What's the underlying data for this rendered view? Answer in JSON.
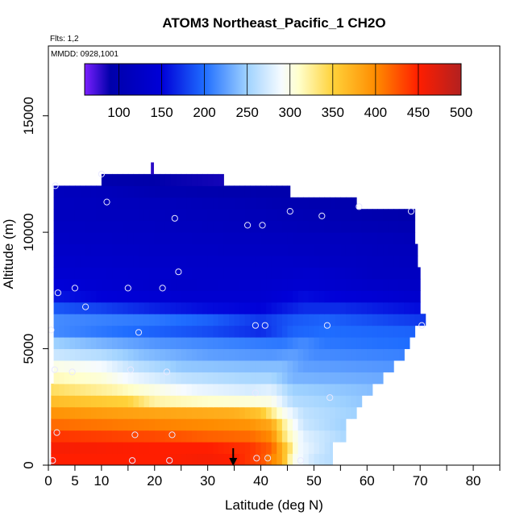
{
  "chart_data": {
    "type": "heatmap",
    "title": "ATOM3 Northeast_Pacific_1 CH2O",
    "subtitle_flights": "Flts: 1,2",
    "subtitle_dates": "MMDD: 0928,1001",
    "xlabel": "Latitude (deg N)",
    "ylabel": "Altitude (m)",
    "xlim": [
      0,
      85
    ],
    "ylim": [
      0,
      18000
    ],
    "x_ticks": [
      0,
      5,
      10,
      20,
      30,
      40,
      50,
      60,
      70,
      80
    ],
    "x_tick_labels": [
      "0",
      "5",
      "10",
      "20",
      "30",
      "40",
      "50",
      "60",
      "70",
      "80"
    ],
    "y_ticks": [
      0,
      5000,
      10000,
      15000
    ],
    "y_tick_labels": [
      "0",
      "5000",
      "10000",
      "15000"
    ],
    "colorbar": {
      "range": [
        60,
        500
      ],
      "ticks": [
        100,
        150,
        200,
        250,
        300,
        350,
        400,
        450,
        500
      ],
      "tick_labels": [
        "100",
        "150",
        "200",
        "250",
        "300",
        "350",
        "400",
        "450",
        "500"
      ],
      "stops": [
        [
          60,
          "#7b1fff"
        ],
        [
          90,
          "#0000aa"
        ],
        [
          150,
          "#0000d8"
        ],
        [
          200,
          "#1f6dff"
        ],
        [
          250,
          "#9fd2ff"
        ],
        [
          290,
          "#f6fbff"
        ],
        [
          310,
          "#ffffcc"
        ],
        [
          350,
          "#ffd23a"
        ],
        [
          400,
          "#ff8c00"
        ],
        [
          450,
          "#ff1e00"
        ],
        [
          500,
          "#b22020"
        ]
      ]
    },
    "altitude_bins": [
      {
        "z0": 0,
        "z1": 500,
        "xmin": 0.5,
        "xmax": 53.5,
        "v": [
          [
            0.5,
            450
          ],
          [
            20,
            450
          ],
          [
            30,
            455
          ],
          [
            35,
            450
          ],
          [
            40,
            430
          ],
          [
            44,
            380
          ],
          [
            46,
            300
          ],
          [
            50,
            270
          ],
          [
            53.5,
            260
          ]
        ]
      },
      {
        "z0": 500,
        "z1": 1000,
        "xmin": 0.5,
        "xmax": 53.5,
        "v": [
          [
            0.5,
            455
          ],
          [
            20,
            450
          ],
          [
            30,
            450
          ],
          [
            38,
            440
          ],
          [
            42,
            420
          ],
          [
            45,
            350
          ],
          [
            47,
            290
          ],
          [
            53.5,
            260
          ]
        ]
      },
      {
        "z0": 1000,
        "z1": 1500,
        "xmin": 0.5,
        "xmax": 56,
        "v": [
          [
            0.5,
            440
          ],
          [
            20,
            430
          ],
          [
            30,
            420
          ],
          [
            38,
            415
          ],
          [
            42,
            400
          ],
          [
            45,
            320
          ],
          [
            48,
            280
          ],
          [
            56,
            255
          ]
        ]
      },
      {
        "z0": 1500,
        "z1": 2000,
        "xmin": 0.5,
        "xmax": 56,
        "v": [
          [
            0.5,
            415
          ],
          [
            20,
            405
          ],
          [
            30,
            400
          ],
          [
            38,
            395
          ],
          [
            42,
            380
          ],
          [
            45,
            310
          ],
          [
            48,
            270
          ],
          [
            56,
            250
          ]
        ]
      },
      {
        "z0": 2000,
        "z1": 2500,
        "xmin": 0.5,
        "xmax": 58,
        "v": [
          [
            0.5,
            395
          ],
          [
            15,
            385
          ],
          [
            25,
            380
          ],
          [
            35,
            375
          ],
          [
            40,
            360
          ],
          [
            44,
            300
          ],
          [
            48,
            265
          ],
          [
            58,
            250
          ]
        ]
      },
      {
        "z0": 2500,
        "z1": 3000,
        "xmin": 0.5,
        "xmax": 59,
        "v": [
          [
            0.5,
            365
          ],
          [
            15,
            350
          ],
          [
            20,
            320
          ],
          [
            30,
            310
          ],
          [
            38,
            305
          ],
          [
            42,
            300
          ],
          [
            46,
            260
          ],
          [
            59,
            245
          ]
        ]
      },
      {
        "z0": 3000,
        "z1": 3500,
        "xmin": 0.5,
        "xmax": 61,
        "v": [
          [
            0.5,
            340
          ],
          [
            12,
            320
          ],
          [
            18,
            305
          ],
          [
            28,
            285
          ],
          [
            38,
            275
          ],
          [
            42,
            280
          ],
          [
            46,
            250
          ],
          [
            61,
            240
          ]
        ]
      },
      {
        "z0": 3500,
        "z1": 4000,
        "xmin": 1,
        "xmax": 63,
        "v": [
          [
            1,
            315
          ],
          [
            10,
            305
          ],
          [
            16,
            285
          ],
          [
            25,
            265
          ],
          [
            38,
            255
          ],
          [
            42,
            255
          ],
          [
            46,
            235
          ],
          [
            63,
            230
          ]
        ]
      },
      {
        "z0": 4000,
        "z1": 4500,
        "xmin": 1,
        "xmax": 65,
        "v": [
          [
            1,
            300
          ],
          [
            10,
            290
          ],
          [
            16,
            265
          ],
          [
            25,
            245
          ],
          [
            38,
            240
          ],
          [
            44,
            240
          ],
          [
            48,
            225
          ],
          [
            65,
            220
          ]
        ]
      },
      {
        "z0": 4500,
        "z1": 5000,
        "xmin": 1,
        "xmax": 67,
        "v": [
          [
            1,
            270
          ],
          [
            10,
            260
          ],
          [
            18,
            240
          ],
          [
            30,
            225
          ],
          [
            42,
            220
          ],
          [
            46,
            225
          ],
          [
            50,
            215
          ],
          [
            67,
            210
          ]
        ]
      },
      {
        "z0": 5000,
        "z1": 5500,
        "xmin": 1,
        "xmax": 68,
        "v": [
          [
            1,
            250
          ],
          [
            10,
            235
          ],
          [
            20,
            220
          ],
          [
            35,
            210
          ],
          [
            44,
            205
          ],
          [
            48,
            215
          ],
          [
            52,
            205
          ],
          [
            68,
            200
          ]
        ]
      },
      {
        "z0": 5500,
        "z1": 6000,
        "xmin": 1,
        "xmax": 69,
        "v": [
          [
            1,
            215
          ],
          [
            10,
            205
          ],
          [
            20,
            195
          ],
          [
            30,
            185
          ],
          [
            40,
            170
          ],
          [
            46,
            195
          ],
          [
            52,
            200
          ],
          [
            69,
            195
          ]
        ]
      },
      {
        "z0": 6000,
        "z1": 6500,
        "xmin": 1,
        "xmax": 71,
        "v": [
          [
            1,
            215
          ],
          [
            10,
            210
          ],
          [
            20,
            205
          ],
          [
            30,
            195
          ],
          [
            40,
            175
          ],
          [
            46,
            190
          ],
          [
            52,
            195
          ],
          [
            71,
            175
          ]
        ]
      },
      {
        "z0": 6500,
        "z1": 7000,
        "xmin": 1,
        "xmax": 70,
        "v": [
          [
            1,
            190
          ],
          [
            10,
            180
          ],
          [
            20,
            165
          ],
          [
            30,
            155
          ],
          [
            40,
            150
          ],
          [
            48,
            170
          ],
          [
            55,
            170
          ],
          [
            70,
            155
          ]
        ]
      },
      {
        "z0": 7000,
        "z1": 7500,
        "xmin": 1,
        "xmax": 70,
        "v": [
          [
            1,
            160
          ],
          [
            10,
            150
          ],
          [
            25,
            140
          ],
          [
            40,
            140
          ],
          [
            48,
            155
          ],
          [
            60,
            145
          ],
          [
            70,
            135
          ]
        ]
      },
      {
        "z0": 7500,
        "z1": 8000,
        "xmin": 1,
        "xmax": 70,
        "v": [
          [
            1,
            150
          ],
          [
            10,
            140
          ],
          [
            25,
            130
          ],
          [
            40,
            135
          ],
          [
            48,
            140
          ],
          [
            60,
            130
          ],
          [
            70,
            125
          ]
        ]
      },
      {
        "z0": 8000,
        "z1": 8500,
        "xmin": 1,
        "xmax": 70,
        "v": [
          [
            1,
            140
          ],
          [
            15,
            135
          ],
          [
            30,
            130
          ],
          [
            42,
            130
          ],
          [
            50,
            135
          ],
          [
            62,
            120
          ],
          [
            70,
            120
          ]
        ]
      },
      {
        "z0": 8500,
        "z1": 9000,
        "xmin": 1,
        "xmax": 69.5,
        "v": [
          [
            1,
            135
          ],
          [
            15,
            130
          ],
          [
            30,
            128
          ],
          [
            45,
            128
          ],
          [
            55,
            122
          ],
          [
            69.5,
            115
          ]
        ]
      },
      {
        "z0": 9000,
        "z1": 9500,
        "xmin": 1,
        "xmax": 69.5,
        "v": [
          [
            1,
            130
          ],
          [
            20,
            125
          ],
          [
            40,
            122
          ],
          [
            55,
            118
          ],
          [
            69.5,
            112
          ]
        ]
      },
      {
        "z0": 9500,
        "z1": 10000,
        "xmin": 1,
        "xmax": 69,
        "v": [
          [
            1,
            125
          ],
          [
            20,
            122
          ],
          [
            40,
            118
          ],
          [
            55,
            115
          ],
          [
            69,
            108
          ]
        ]
      },
      {
        "z0": 10000,
        "z1": 10500,
        "xmin": 1,
        "xmax": 69,
        "v": [
          [
            1,
            122
          ],
          [
            20,
            118
          ],
          [
            40,
            112
          ],
          [
            55,
            105
          ],
          [
            69,
            100
          ]
        ]
      },
      {
        "z0": 10500,
        "z1": 11000,
        "xmin": 1,
        "xmax": 69,
        "v": [
          [
            1,
            118
          ],
          [
            20,
            115
          ],
          [
            40,
            108
          ],
          [
            55,
            100
          ],
          [
            62,
            95
          ],
          [
            69,
            92
          ]
        ]
      },
      {
        "z0": 11000,
        "z1": 11500,
        "xmin": 1,
        "xmax": 58,
        "v": [
          [
            1,
            118
          ],
          [
            20,
            112
          ],
          [
            35,
            105
          ],
          [
            45,
            98
          ],
          [
            58,
            95
          ]
        ]
      },
      {
        "z0": 11500,
        "z1": 12000,
        "xmin": 1,
        "xmax": 45.5,
        "v": [
          [
            1,
            115
          ],
          [
            12,
            110
          ],
          [
            20,
            100
          ],
          [
            30,
            95
          ],
          [
            45.5,
            92
          ]
        ]
      },
      {
        "z0": 12000,
        "z1": 12500,
        "xmin": 10,
        "xmax": 33,
        "v": [
          [
            10,
            95
          ],
          [
            20,
            90
          ],
          [
            33,
            85
          ]
        ]
      },
      {
        "z0": 12500,
        "z1": 13000,
        "xmin": 19.3,
        "xmax": 19.8,
        "v": [
          [
            19.3,
            80
          ],
          [
            19.8,
            80
          ]
        ]
      }
    ],
    "observations": [
      [
        0.8,
        200
      ],
      [
        1.6,
        1400
      ],
      [
        1.2,
        4100
      ],
      [
        1.8,
        7400
      ],
      [
        0.5,
        5800
      ],
      [
        1.3,
        12000
      ],
      [
        4.5,
        4000
      ],
      [
        5,
        7600
      ],
      [
        7,
        6800
      ],
      [
        10,
        12500
      ],
      [
        11,
        11300
      ],
      [
        15,
        7600
      ],
      [
        15.5,
        4100
      ],
      [
        15.8,
        200
      ],
      [
        16.3,
        1300
      ],
      [
        17,
        5700
      ],
      [
        21.5,
        7600
      ],
      [
        22.3,
        4000
      ],
      [
        22.8,
        200
      ],
      [
        23.3,
        1300
      ],
      [
        23.8,
        10600
      ],
      [
        24.5,
        8300
      ],
      [
        37.5,
        10300
      ],
      [
        39,
        6000
      ],
      [
        39,
        3100
      ],
      [
        39.2,
        300
      ],
      [
        40.3,
        10300
      ],
      [
        40.8,
        6000
      ],
      [
        41.3,
        300
      ],
      [
        45.5,
        10900
      ],
      [
        47.5,
        200
      ],
      [
        51.5,
        10700
      ],
      [
        52.5,
        6000
      ],
      [
        53,
        2900
      ],
      [
        58.5,
        11100
      ],
      [
        68.3,
        10900
      ],
      [
        70.3,
        6000
      ]
    ],
    "arrow_latitude": 34.8,
    "observation_color": "#e8e8ff"
  }
}
